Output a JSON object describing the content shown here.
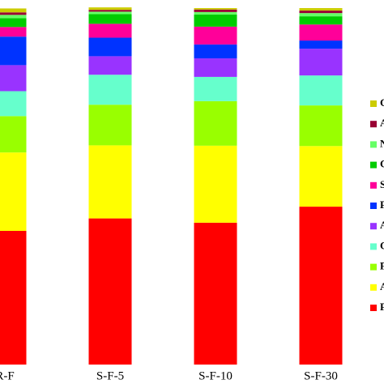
{
  "chart_data": {
    "type": "stacked_bar",
    "categories": [
      "R-F",
      "S-F-5",
      "S-F-10",
      "S-F-30"
    ],
    "ylim": [
      0,
      100
    ],
    "series": [
      {
        "name": "F",
        "color": "#ff0000",
        "values": [
          37.5,
          41,
          39.8,
          44.3
        ]
      },
      {
        "name": "A",
        "color": "#ffff00",
        "values": [
          22,
          20.5,
          21.6,
          17
        ]
      },
      {
        "name": "F",
        "color": "#99ff00",
        "values": [
          10.2,
          11.4,
          12.5,
          11.4
        ]
      },
      {
        "name": "C",
        "color": "#66ffcc",
        "values": [
          7,
          8.4,
          6.8,
          8.4
        ]
      },
      {
        "name": "A",
        "color": "#9933ff",
        "values": [
          7.3,
          5.2,
          5.2,
          7.5
        ]
      },
      {
        "name": "F",
        "color": "#0033ff",
        "values": [
          8,
          5.2,
          3.9,
          2.3
        ]
      },
      {
        "name": "S",
        "color": "#ff0099",
        "values": [
          2.7,
          3.9,
          5,
          4.5
        ]
      },
      {
        "name": "C",
        "color": "#00cc00",
        "values": [
          2.5,
          2.7,
          3.4,
          2.3
        ]
      },
      {
        "name": "N",
        "color": "#66ff66",
        "values": [
          0.9,
          0.7,
          0.7,
          0.9
        ]
      },
      {
        "name": "A",
        "color": "#990033",
        "values": [
          0.7,
          0.5,
          0.7,
          0.7
        ]
      },
      {
        "name": "C",
        "color": "#cccc00",
        "values": [
          1.1,
          0.7,
          0.4,
          0.7
        ]
      }
    ]
  }
}
